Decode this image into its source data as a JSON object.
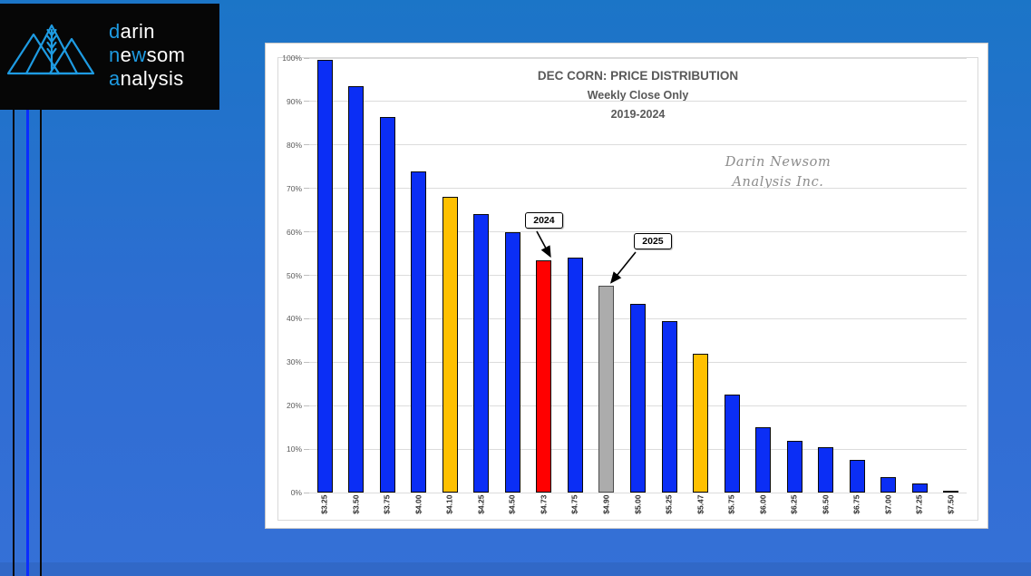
{
  "logo": {
    "lines": [
      {
        "segments": [
          {
            "text": "d",
            "accent": true
          },
          {
            "text": "arin",
            "accent": false
          }
        ]
      },
      {
        "segments": [
          {
            "text": "n",
            "accent": true
          },
          {
            "text": "e",
            "accent": false
          },
          {
            "text": "w",
            "accent": true
          },
          {
            "text": "som",
            "accent": false
          }
        ]
      },
      {
        "segments": [
          {
            "text": "a",
            "accent": true
          },
          {
            "text": "nalysis",
            "accent": false
          }
        ]
      }
    ],
    "accent_color": "#1e9be2"
  },
  "chart_data": {
    "type": "bar",
    "title": "DEC CORN: PRICE DISTRIBUTION",
    "subtitle": "Weekly Close Only",
    "period": "2019-2024",
    "watermark": [
      "Darin Newsom",
      "Analysis Inc."
    ],
    "categories": [
      "$3.25",
      "$3.50",
      "$3.75",
      "$4.00",
      "$4.10",
      "$4.25",
      "$4.50",
      "$4.73",
      "$4.75",
      "$4.90",
      "$5.00",
      "$5.25",
      "$5.47",
      "$5.75",
      "$6.00",
      "$6.25",
      "$6.50",
      "$6.75",
      "$7.00",
      "$7.25",
      "$7.50"
    ],
    "values": [
      99.5,
      93.5,
      86.5,
      74,
      68,
      64,
      60,
      53.5,
      54,
      47.5,
      43.5,
      39.5,
      32,
      22.5,
      15,
      12,
      10.5,
      7.5,
      3.5,
      2,
      0.5
    ],
    "bar_colors": [
      "blue",
      "blue",
      "blue",
      "blue",
      "gold",
      "blue",
      "blue",
      "red",
      "blue",
      "gray",
      "blue",
      "blue",
      "gold",
      "blue",
      "blue",
      "blue",
      "blue",
      "blue",
      "blue",
      "blue",
      "blue"
    ],
    "palette": {
      "blue": "#0b2ef5",
      "gold": "#ffc000",
      "red": "#ff0000",
      "gray": "#acacac"
    },
    "ylabel_ticks": [
      "0%",
      "10%",
      "20%",
      "30%",
      "40%",
      "50%",
      "60%",
      "70%",
      "80%",
      "90%",
      "100%"
    ],
    "ylim": [
      0,
      100
    ],
    "grid": true,
    "legend": "none",
    "annotations": [
      {
        "label": "2024",
        "bar_index": 7
      },
      {
        "label": "2025",
        "bar_index": 9
      }
    ]
  }
}
